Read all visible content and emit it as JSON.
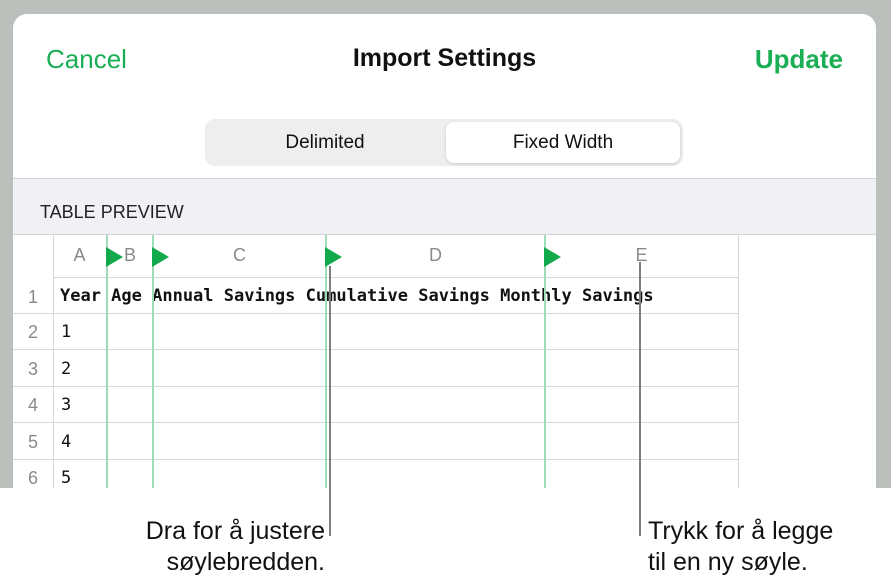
{
  "nav": {
    "cancel": "Cancel",
    "title": "Import Settings",
    "update": "Update"
  },
  "segmented": {
    "options": [
      "Delimited",
      "Fixed Width"
    ],
    "selected": "Fixed Width"
  },
  "section_header": "TABLE PREVIEW",
  "table": {
    "columns": [
      "A",
      "B",
      "C",
      "D",
      "E"
    ],
    "row_numbers": [
      "1",
      "2",
      "3",
      "4",
      "5",
      "6"
    ],
    "header_text": "Year Age Annual Savings Cumulative Savings Monthly Savings",
    "column_a_values": [
      "1",
      "2",
      "3",
      "4",
      "5"
    ]
  },
  "callouts": {
    "drag": [
      "Dra for å justere",
      "søylebredden."
    ],
    "tap": [
      "Trykk for å legge",
      "til en ny søyle."
    ]
  },
  "colors": {
    "accent": "#1aae55",
    "column_marker": "#12a84c",
    "column_guide": "#9fdcb9"
  }
}
